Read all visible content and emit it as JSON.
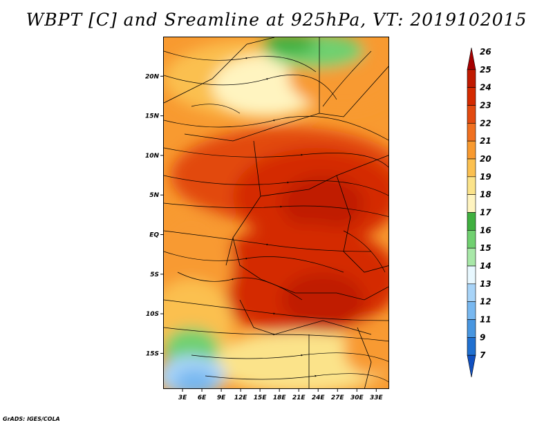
{
  "title": "WBPT [C] and Sreamline at 925hPa, VT: 2019102015",
  "footer": "GrADS: IGES/COLA",
  "map": {
    "lon_range": [
      0,
      35
    ],
    "lat_range": [
      -19.5,
      25
    ],
    "lat_ticks": [
      "20N",
      "15N",
      "10N",
      "5N",
      "EQ",
      "5S",
      "10S",
      "15S"
    ],
    "lat_values": [
      20,
      15,
      10,
      5,
      0,
      -5,
      -10,
      -15
    ],
    "lon_ticks": [
      "3E",
      "6E",
      "9E",
      "12E",
      "15E",
      "18E",
      "21E",
      "24E",
      "27E",
      "30E",
      "33E"
    ],
    "lon_values": [
      3,
      6,
      9,
      12,
      15,
      18,
      21,
      24,
      27,
      30,
      33
    ]
  },
  "colorbar": {
    "levels": [
      "26",
      "25",
      "24",
      "23",
      "22",
      "21",
      "20",
      "19",
      "18",
      "17",
      "16",
      "15",
      "14",
      "13",
      "12",
      "11",
      "9",
      "7"
    ],
    "colors": [
      "#a50000",
      "#c01a00",
      "#d42a00",
      "#e24a10",
      "#f07020",
      "#f89a30",
      "#fbc050",
      "#fbe38a",
      "#fff4c0",
      "#40b040",
      "#70d070",
      "#a8e8a8",
      "#e8f8ff",
      "#a8d4f8",
      "#78b8f0",
      "#4896e0",
      "#2070d0",
      "#1050c0"
    ]
  }
}
